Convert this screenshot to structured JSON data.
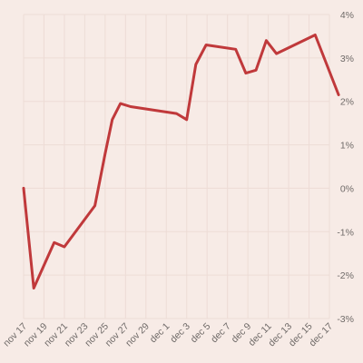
{
  "chart_data": {
    "type": "line",
    "title": "",
    "xlabel": "",
    "ylabel": "",
    "x_tick_labels": [
      "nov 17",
      "nov 19",
      "nov 21",
      "nov 23",
      "nov 25",
      "nov 27",
      "nov 29",
      "dec 1",
      "dec 3",
      "dec 5",
      "dec 7",
      "dec 9",
      "dec 11",
      "dec 13",
      "dec 15",
      "dec 17"
    ],
    "y_tick_labels": [
      "4%",
      "3%",
      "2%",
      "1%",
      "0%",
      "-1%",
      "-2%",
      "-3%"
    ],
    "y_tick_values": [
      4,
      3,
      2,
      1,
      0,
      -1,
      -2,
      -3
    ],
    "ylim": [
      -3,
      4
    ],
    "y_axis_position": "right",
    "grid": true,
    "line_color": "#c0393b",
    "series": [
      {
        "x": [
          "nov 17",
          "nov 18",
          "nov 18.8",
          "nov 20",
          "nov 21",
          "nov 24",
          "nov 25",
          "nov 25.7",
          "nov 26.5",
          "nov 27.5",
          "dec 2",
          "dec 3",
          "dec 3.9",
          "dec 4.9",
          "dec 7.8",
          "dec 8.8",
          "dec 9.8",
          "dec 10.8",
          "dec 11.8",
          "dec 15.6",
          "dec 17.9"
        ],
        "values": [
          0.0,
          -2.3,
          -1.88,
          -1.25,
          -1.35,
          -0.4,
          0.8,
          1.58,
          1.95,
          1.88,
          1.72,
          1.58,
          2.85,
          3.3,
          3.2,
          2.65,
          2.72,
          3.4,
          3.1,
          3.53,
          2.15
        ]
      }
    ]
  }
}
